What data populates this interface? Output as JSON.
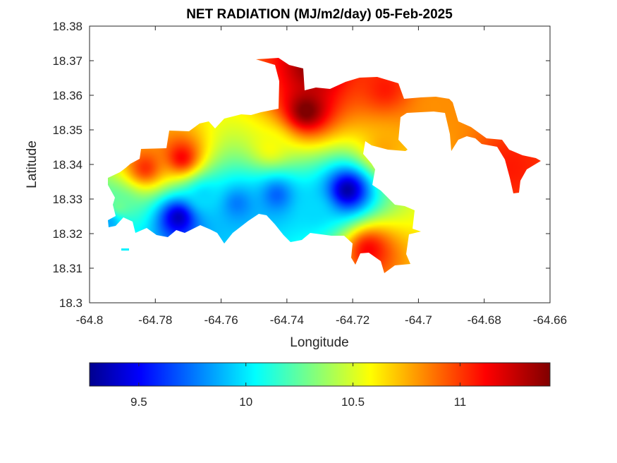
{
  "chart_data": {
    "type": "heatmap",
    "title": "NET RADIATION (MJ/m2/day) 05-Feb-2025",
    "xlabel": "Longitude",
    "ylabel": "Latitude",
    "xlim": [
      -64.8,
      -64.66
    ],
    "ylim": [
      18.3,
      18.38
    ],
    "x_ticks": [
      -64.8,
      -64.78,
      -64.76,
      -64.74,
      -64.72,
      -64.7,
      -64.68,
      -64.66
    ],
    "x_tick_labels": [
      "-64.8",
      "-64.78",
      "-64.76",
      "-64.74",
      "-64.72",
      "-64.7",
      "-64.68",
      "-64.66"
    ],
    "y_ticks": [
      18.3,
      18.31,
      18.32,
      18.33,
      18.34,
      18.35,
      18.36,
      18.37,
      18.38
    ],
    "y_tick_labels": [
      "18.3",
      "18.31",
      "18.32",
      "18.33",
      "18.34",
      "18.35",
      "18.36",
      "18.37",
      "18.38"
    ],
    "colormap": "jet",
    "colorbar": {
      "placement": "bottom",
      "range": [
        9.27,
        11.42
      ],
      "ticks": [
        9.5,
        10,
        10.5,
        11
      ],
      "tick_labels": [
        "9.5",
        "10",
        "10.5",
        "11"
      ]
    },
    "grid": false,
    "hotspots": [
      {
        "lon": -64.7215,
        "lat": 18.3325,
        "value": 9.35
      },
      {
        "lon": -64.773,
        "lat": 18.3245,
        "value": 9.4
      },
      {
        "lon": -64.743,
        "lat": 18.331,
        "value": 9.75
      },
      {
        "lon": -64.755,
        "lat": 18.3285,
        "value": 9.8
      },
      {
        "lon": -64.732,
        "lat": 18.3265,
        "value": 10.0
      },
      {
        "lon": -64.765,
        "lat": 18.3305,
        "value": 10.0
      },
      {
        "lon": -64.791,
        "lat": 18.328,
        "value": 10.3
      },
      {
        "lon": -64.794,
        "lat": 18.323,
        "value": 9.9
      },
      {
        "lon": -64.745,
        "lat": 18.345,
        "value": 10.6
      },
      {
        "lon": -64.734,
        "lat": 18.3555,
        "value": 11.45
      },
      {
        "lon": -64.732,
        "lat": 18.368,
        "value": 11.4
      },
      {
        "lon": -64.71,
        "lat": 18.362,
        "value": 11.1
      },
      {
        "lon": -64.772,
        "lat": 18.342,
        "value": 11.15
      },
      {
        "lon": -64.783,
        "lat": 18.339,
        "value": 11.05
      },
      {
        "lon": -64.715,
        "lat": 18.315,
        "value": 11.15
      },
      {
        "lon": -64.695,
        "lat": 18.357,
        "value": 10.85
      },
      {
        "lon": -64.672,
        "lat": 18.339,
        "value": 11.1
      },
      {
        "lon": -64.71,
        "lat": 18.345,
        "value": 10.8
      }
    ]
  }
}
